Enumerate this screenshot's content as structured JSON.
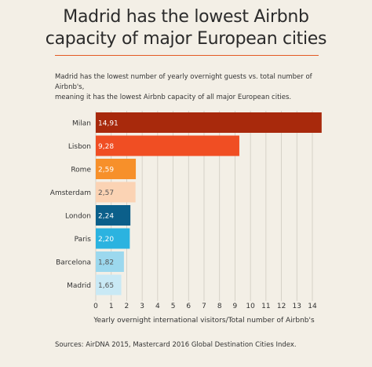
{
  "header": {
    "title_line1": "Madrid has the lowest Airbnb",
    "title_line2": "capacity of major European cities",
    "subtitle_line1": "Madrid has the lowest number of yearly overnight guests vs. total number of Airbnb's,",
    "subtitle_line2": "meaning it has the lowest Airbnb capacity of all major European cities."
  },
  "footer": {
    "source": "Sources: AirDNA 2015, Mastercard 2016 Global Destination Cities Index."
  },
  "chart_data": {
    "type": "bar",
    "orientation": "horizontal",
    "categories": [
      "Milan",
      "Lisbon",
      "Rome",
      "Amsterdam",
      "London",
      "Paris",
      "Barcelona",
      "Madrid"
    ],
    "values": [
      14.91,
      9.28,
      2.59,
      2.57,
      2.24,
      2.2,
      1.82,
      1.65
    ],
    "value_labels": [
      "14,91",
      "9,28",
      "2,59",
      "2,57",
      "2,24",
      "2,20",
      "1,82",
      "1,65"
    ],
    "colors": [
      "#a8290c",
      "#f04e23",
      "#f7902a",
      "#fbd3b4",
      "#0b5f8a",
      "#2bb3e0",
      "#9cd8ee",
      "#c9e9f5"
    ],
    "label_colors": [
      "#ffffff",
      "#ffffff",
      "#ffffff",
      "#555555",
      "#ffffff",
      "#ffffff",
      "#555555",
      "#555555"
    ],
    "xlabel": "Yearly overnight international visitors/Total number of Airbnb's",
    "xlim": [
      0,
      14
    ],
    "xticks": [
      0,
      1,
      2,
      3,
      4,
      5,
      6,
      7,
      8,
      9,
      10,
      11,
      12,
      13,
      14
    ],
    "grid": true
  }
}
